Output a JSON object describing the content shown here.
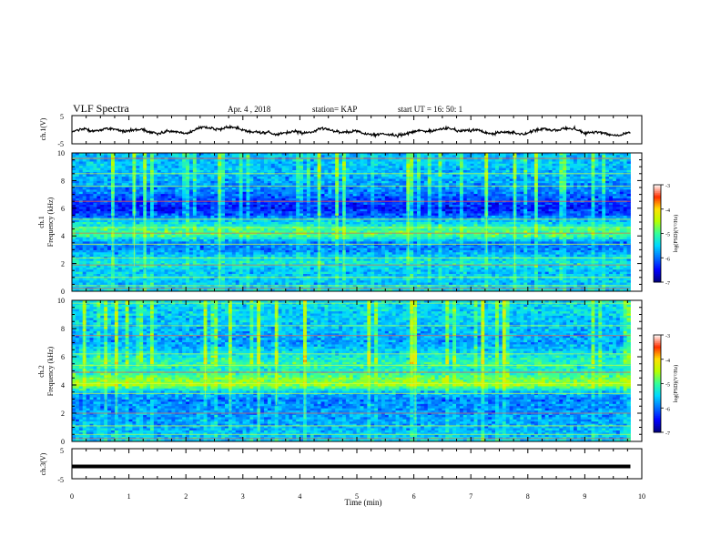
{
  "header": {
    "title": "VLF Spectra",
    "date": "Apr. 4 , 2018",
    "station": "station= KAP",
    "start_time": "start UT = 16: 50: 1"
  },
  "axes": {
    "time_label": "Time (min)",
    "ch1_wave_label": "ch.1(V)",
    "ch1_spec_label_line1": "ch.1",
    "ch1_spec_label_line2": "Frequency (kHz)",
    "ch2_spec_label_line1": "ch.2",
    "ch2_spec_label_line2": "Frequency (kHz)",
    "ch3_wave_label": "ch.3(V)",
    "colorbar_label": "log(PSD)(V²/Hz)"
  },
  "colors": {
    "background": "#ffffff",
    "axis": "#000000",
    "colormap": [
      "#00007a",
      "#0000ff",
      "#0070ff",
      "#00d8ff",
      "#33ff99",
      "#b6ff00",
      "#ffe000",
      "#ff3000",
      "#ffffff"
    ]
  },
  "chart_data": [
    {
      "type": "line",
      "name": "ch1-waveform",
      "ylabel": "ch.1(V)",
      "xlim": [
        0,
        10
      ],
      "ylim": [
        -5,
        5
      ],
      "yticks": [
        -5,
        5
      ],
      "x_end": 9.8,
      "description_values": {
        "baseline": -0.8,
        "amplitude_range": [
          -2.5,
          1.5
        ]
      }
    },
    {
      "type": "heatmap",
      "name": "ch1-spectrogram",
      "xlabel": "",
      "ylabel": "Frequency (kHz)",
      "xlim": [
        0,
        10
      ],
      "ylim": [
        0,
        10
      ],
      "yticks": [
        0,
        2,
        4,
        6,
        8,
        10
      ],
      "x_end": 9.8,
      "band_kHz": [
        0,
        10
      ],
      "level_profile": [
        {
          "f": 0.0,
          "v": -5.4
        },
        {
          "f": 0.5,
          "v": -5.6
        },
        {
          "f": 1.0,
          "v": -5.5
        },
        {
          "f": 1.5,
          "v": -5.6
        },
        {
          "f": 2.0,
          "v": -5.3
        },
        {
          "f": 2.5,
          "v": -5.5
        },
        {
          "f": 3.0,
          "v": -5.9
        },
        {
          "f": 3.5,
          "v": -5.9
        },
        {
          "f": 4.0,
          "v": -5.0
        },
        {
          "f": 4.5,
          "v": -5.0
        },
        {
          "f": 5.0,
          "v": -5.5
        },
        {
          "f": 5.5,
          "v": -6.1
        },
        {
          "f": 6.0,
          "v": -6.4
        },
        {
          "f": 7.0,
          "v": -6.0
        },
        {
          "f": 8.0,
          "v": -5.7
        },
        {
          "f": 9.0,
          "v": -5.6
        },
        {
          "f": 10.0,
          "v": -5.6
        }
      ],
      "lines_kHz": [
        0.2,
        0.4,
        1.0,
        1.9,
        2.4,
        3.4,
        4.2,
        4.6,
        5.2,
        6.5,
        7.6,
        8.5,
        9.6
      ]
    },
    {
      "type": "heatmap",
      "name": "ch2-spectrogram",
      "xlabel": "",
      "ylabel": "Frequency (kHz)",
      "xlim": [
        0,
        10
      ],
      "ylim": [
        0,
        10
      ],
      "yticks": [
        0,
        2,
        4,
        6,
        8,
        10
      ],
      "x_end": 9.8,
      "band_kHz": [
        0,
        10
      ],
      "level_profile": [
        {
          "f": 0.0,
          "v": -5.5
        },
        {
          "f": 0.5,
          "v": -5.6
        },
        {
          "f": 1.0,
          "v": -5.7
        },
        {
          "f": 2.0,
          "v": -5.8
        },
        {
          "f": 3.0,
          "v": -5.9
        },
        {
          "f": 3.5,
          "v": -5.6
        },
        {
          "f": 4.0,
          "v": -4.6
        },
        {
          "f": 4.5,
          "v": -4.8
        },
        {
          "f": 5.0,
          "v": -5.3
        },
        {
          "f": 5.5,
          "v": -5.1
        },
        {
          "f": 6.0,
          "v": -5.3
        },
        {
          "f": 7.0,
          "v": -5.8
        },
        {
          "f": 8.0,
          "v": -5.6
        },
        {
          "f": 9.0,
          "v": -5.5
        },
        {
          "f": 10.0,
          "v": -5.4
        }
      ],
      "lines_kHz": [
        0.2,
        0.5,
        1.1,
        2.0,
        3.4,
        4.1,
        4.9,
        5.4,
        6.2,
        7.5,
        8.2,
        9.8
      ]
    },
    {
      "type": "line",
      "name": "ch3-waveform",
      "ylabel": "ch.3(V)",
      "xlim": [
        0,
        10
      ],
      "ylim": [
        -5,
        5
      ],
      "yticks": [
        -5,
        5
      ],
      "x_end": 9.8,
      "constant_value": 0
    },
    {
      "type": "heatmap",
      "name": "colorbar",
      "label": "log(PSD)(V²/Hz)",
      "range": [
        -7,
        -3
      ],
      "ticks": [
        -7,
        -6,
        -5,
        -4,
        -3
      ]
    }
  ],
  "xaxis": {
    "xlim": [
      0,
      10
    ],
    "ticks": [
      0,
      1,
      2,
      3,
      4,
      5,
      6,
      7,
      8,
      9,
      10
    ],
    "label": "Time (min)"
  }
}
